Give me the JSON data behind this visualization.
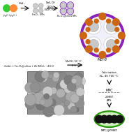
{
  "bg_color": "#ffffff",
  "fe2_color": "#33cc33",
  "fe3_color": "#ff8833",
  "purple_ring_color": "#8822bb",
  "purple_ring_color2": "#9933cc",
  "orange_node_color": "#cc6611",
  "green_ellipse_color": "#44bb22",
  "green_ellipse_border": "#228800",
  "black_sphere_color": "#111111",
  "sem_bg": "#aaaaaa",
  "sem_border": "#555555",
  "label_zif": "MZI-8",
  "calcination_text": "Calcination\nN₂, 4h 700 °C",
  "mpc_text": "MPC",
  "mbt2_text": "2-MBT\nAPS",
  "pmbt_text": "MPC@PMBT"
}
